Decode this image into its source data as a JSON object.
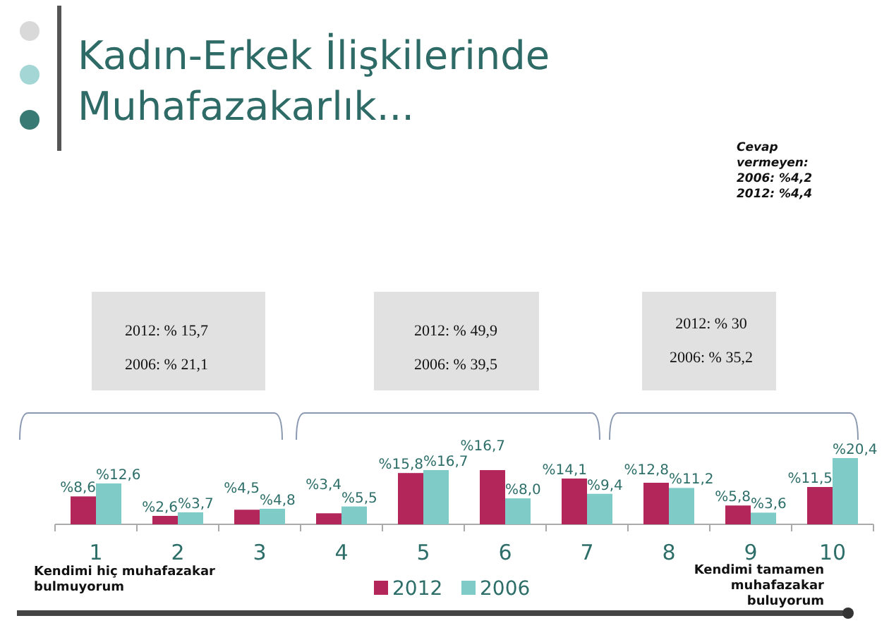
{
  "chart_data": {
    "type": "bar",
    "title": "Kadın-Erkek İlişkilerinde\nMuhafazakarlık...",
    "categories": [
      "1",
      "2",
      "3",
      "4",
      "5",
      "6",
      "7",
      "8",
      "9",
      "10"
    ],
    "series": [
      {
        "name": "2012",
        "color": "#b3265a",
        "values": [
          8.6,
          2.6,
          4.5,
          3.4,
          15.8,
          16.7,
          14.1,
          12.8,
          5.8,
          11.5
        ],
        "value_labels": [
          "%8,6",
          "%2,6",
          "%4,5",
          "%3,4",
          "%15,8",
          "%16,7",
          "%14,1",
          "%12,8",
          "%5,8",
          "%11,5"
        ]
      },
      {
        "name": "2006",
        "color": "#7ecbc8",
        "values": [
          12.6,
          3.7,
          4.8,
          5.5,
          16.7,
          8.0,
          9.4,
          11.2,
          3.6,
          20.4
        ],
        "value_labels": [
          "%12,6",
          "%3,7",
          "%4,8",
          "%5,5",
          "%16,7",
          "%8,0",
          "%9,4",
          "%11,2",
          "%3,6",
          "%20,4"
        ]
      }
    ],
    "legend": "bottom",
    "annotations": [
      "Cevap\nvermeyen:\n2006: %4,2\n2012:  %4,4",
      "2012: % 15,7\n\n2006: % 21,1",
      "2012: % 49,9\n\n2006: % 39,5",
      "2012: % 30\n\n2006: % 35,2",
      "Kendimi hiç muhafazakar\nbulmuyorum",
      "Kendimi tamamen\nmuhafazakar\nbuluyorum"
    ]
  }
}
